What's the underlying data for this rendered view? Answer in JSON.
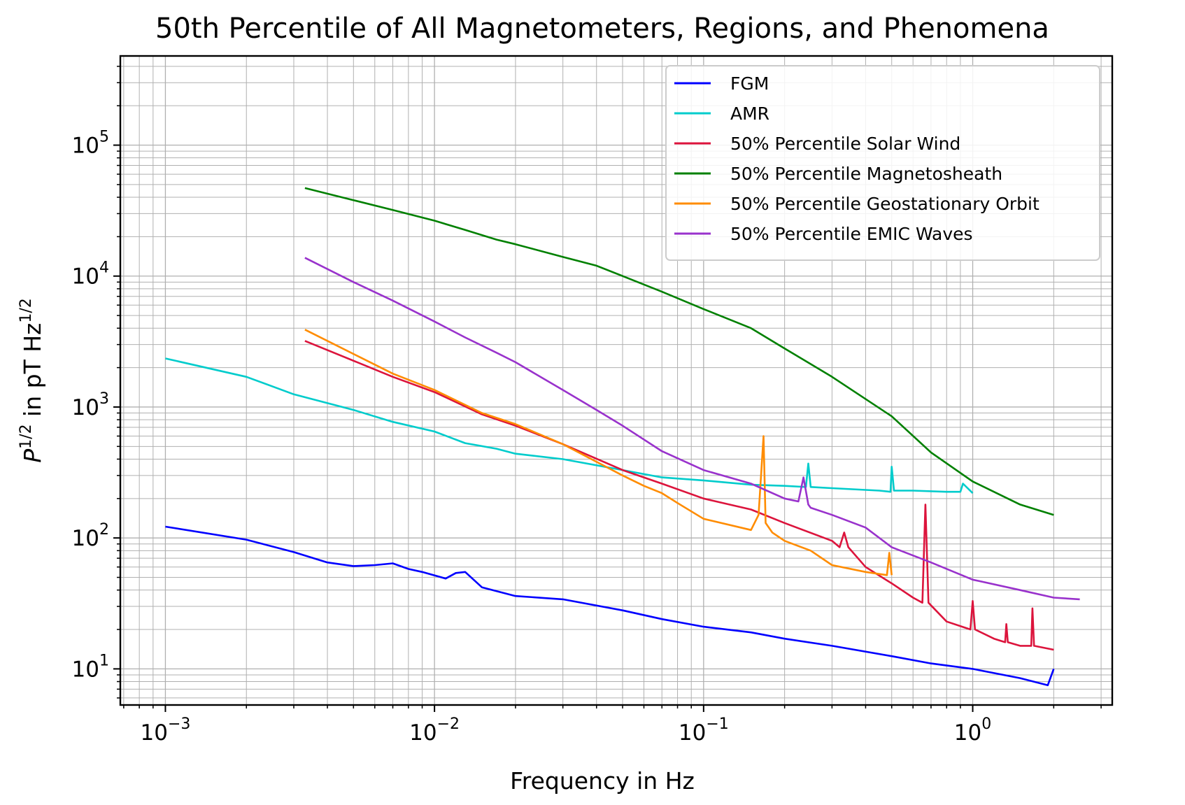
{
  "chart_data": {
    "type": "line",
    "title": "50th Percentile of All Magnetometers, Regions, and Phenomena",
    "xlabel": "Frequency in Hz",
    "ylabel": {
      "base": "P",
      "sup1": "1/2",
      "mid": " in pT Hz",
      "sup2": "1/2"
    },
    "x_scale": "log",
    "y_scale": "log",
    "xlim": [
      0.00068,
      3.3
    ],
    "ylim": [
      5.3,
      480000
    ],
    "grid": true,
    "legend_position": "upper-right",
    "x_ticks": [
      {
        "value": 0.001,
        "base": "10",
        "exp": "−3"
      },
      {
        "value": 0.01,
        "base": "10",
        "exp": "−2"
      },
      {
        "value": 0.1,
        "base": "10",
        "exp": "−1"
      },
      {
        "value": 1,
        "base": "10",
        "exp": "0"
      }
    ],
    "y_ticks": [
      {
        "value": 10,
        "base": "10",
        "exp": "1"
      },
      {
        "value": 100,
        "base": "10",
        "exp": "2"
      },
      {
        "value": 1000,
        "base": "10",
        "exp": "3"
      },
      {
        "value": 10000,
        "base": "10",
        "exp": "4"
      },
      {
        "value": 100000,
        "base": "10",
        "exp": "5"
      }
    ],
    "series": [
      {
        "name": "FGM",
        "color": "#0000ff",
        "x": [
          0.001,
          0.002,
          0.003,
          0.004,
          0.005,
          0.006,
          0.007,
          0.008,
          0.009,
          0.011,
          0.012,
          0.013,
          0.015,
          0.02,
          0.03,
          0.05,
          0.07,
          0.1,
          0.15,
          0.2,
          0.3,
          0.5,
          0.7,
          1.0,
          1.5,
          1.9,
          2.0
        ],
        "y": [
          122,
          97,
          78,
          65,
          61,
          62,
          64,
          58,
          55,
          49,
          54,
          55,
          42,
          36,
          34,
          28,
          24,
          21,
          19,
          17,
          15,
          12.5,
          11,
          10,
          8.5,
          7.5,
          10
        ]
      },
      {
        "name": "AMR",
        "color": "#00cccc",
        "x": [
          0.001,
          0.002,
          0.003,
          0.005,
          0.007,
          0.01,
          0.013,
          0.017,
          0.02,
          0.03,
          0.05,
          0.07,
          0.1,
          0.15,
          0.2,
          0.24,
          0.245,
          0.25,
          0.3,
          0.45,
          0.495,
          0.5,
          0.51,
          0.6,
          0.8,
          0.9,
          0.92,
          1.0
        ],
        "y": [
          2350,
          1700,
          1250,
          950,
          770,
          650,
          530,
          480,
          440,
          400,
          330,
          290,
          275,
          255,
          250,
          245,
          370,
          245,
          240,
          230,
          225,
          350,
          230,
          230,
          225,
          225,
          260,
          220
        ]
      },
      {
        "name": "50% Percentile Solar Wind",
        "color": "#dc143c",
        "x": [
          0.0033,
          0.007,
          0.01,
          0.015,
          0.02,
          0.03,
          0.05,
          0.07,
          0.1,
          0.15,
          0.2,
          0.3,
          0.32,
          0.333,
          0.345,
          0.4,
          0.5,
          0.6,
          0.65,
          0.667,
          0.685,
          0.8,
          0.98,
          1.0,
          1.02,
          1.2,
          1.32,
          1.333,
          1.35,
          1.5,
          1.65,
          1.667,
          1.69,
          2.0
        ],
        "y": [
          3200,
          1700,
          1300,
          880,
          720,
          520,
          330,
          260,
          200,
          165,
          130,
          95,
          85,
          110,
          85,
          60,
          45,
          35,
          32,
          180,
          32,
          23,
          20,
          33,
          20,
          17,
          16,
          22,
          16,
          15,
          15,
          29,
          15,
          14
        ]
      },
      {
        "name": "50% Percentile Magnetosheath",
        "color": "#008000",
        "x": [
          0.0033,
          0.005,
          0.007,
          0.01,
          0.013,
          0.017,
          0.02,
          0.03,
          0.04,
          0.05,
          0.07,
          0.1,
          0.15,
          0.2,
          0.3,
          0.5,
          0.7,
          1.0,
          1.5,
          2.0
        ],
        "y": [
          47000,
          38000,
          32000,
          26500,
          22500,
          19000,
          17500,
          14000,
          12000,
          10000,
          7600,
          5600,
          4000,
          2800,
          1700,
          850,
          450,
          270,
          180,
          150
        ]
      },
      {
        "name": "50% Percentile Geostationary Orbit",
        "color": "#ff8c00",
        "x": [
          0.0033,
          0.007,
          0.01,
          0.015,
          0.02,
          0.03,
          0.05,
          0.06,
          0.07,
          0.08,
          0.1,
          0.15,
          0.16,
          0.167,
          0.17,
          0.18,
          0.2,
          0.25,
          0.3,
          0.4,
          0.48,
          0.49,
          0.5
        ],
        "y": [
          3900,
          1800,
          1350,
          900,
          740,
          520,
          300,
          250,
          220,
          185,
          140,
          115,
          150,
          600,
          130,
          110,
          95,
          80,
          62,
          55,
          52,
          77,
          52
        ]
      },
      {
        "name": "50% Percentile EMIC Waves",
        "color": "#9932cc",
        "x": [
          0.0033,
          0.005,
          0.007,
          0.01,
          0.013,
          0.017,
          0.02,
          0.03,
          0.04,
          0.05,
          0.07,
          0.1,
          0.15,
          0.2,
          0.225,
          0.235,
          0.245,
          0.25,
          0.3,
          0.4,
          0.5,
          0.7,
          1.0,
          1.5,
          2.0,
          2.5
        ],
        "y": [
          13800,
          9000,
          6500,
          4500,
          3400,
          2600,
          2200,
          1350,
          950,
          720,
          460,
          330,
          260,
          200,
          190,
          290,
          180,
          170,
          150,
          120,
          85,
          65,
          48,
          40,
          35,
          34
        ]
      }
    ]
  }
}
